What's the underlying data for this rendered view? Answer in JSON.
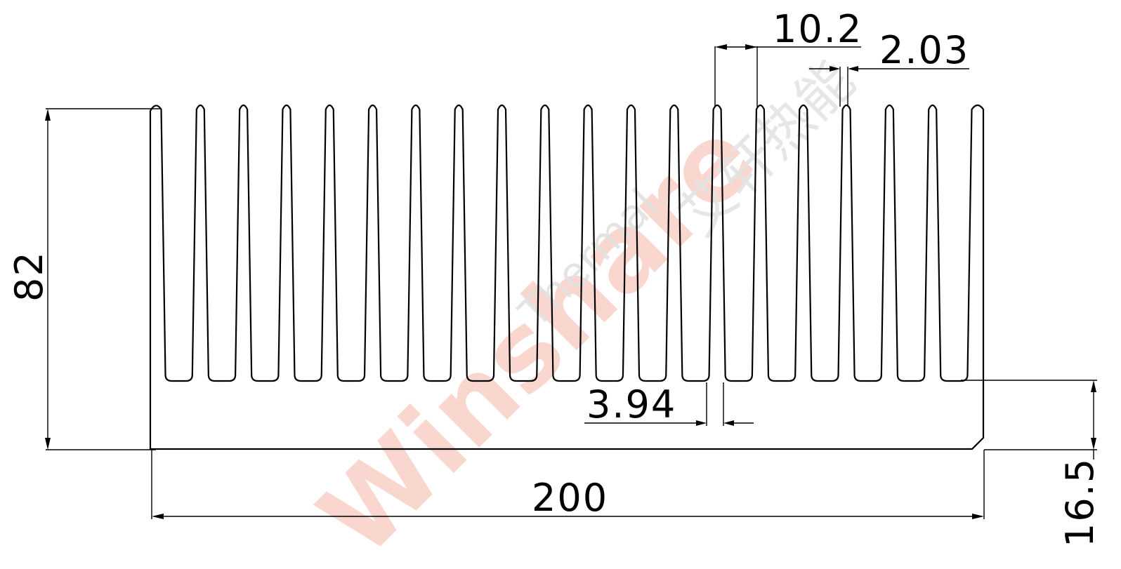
{
  "drawing": {
    "dimensions": {
      "overall_width": "200",
      "overall_height": "82",
      "base_thickness": "16.5",
      "fin_pitch": "10.2",
      "fin_tip": "2.03",
      "fin_root": "3.94"
    },
    "fin_count": 20,
    "watermark": {
      "brand": "Winshare",
      "sub": "Thermal",
      "cn": "艾轩热能"
    }
  }
}
